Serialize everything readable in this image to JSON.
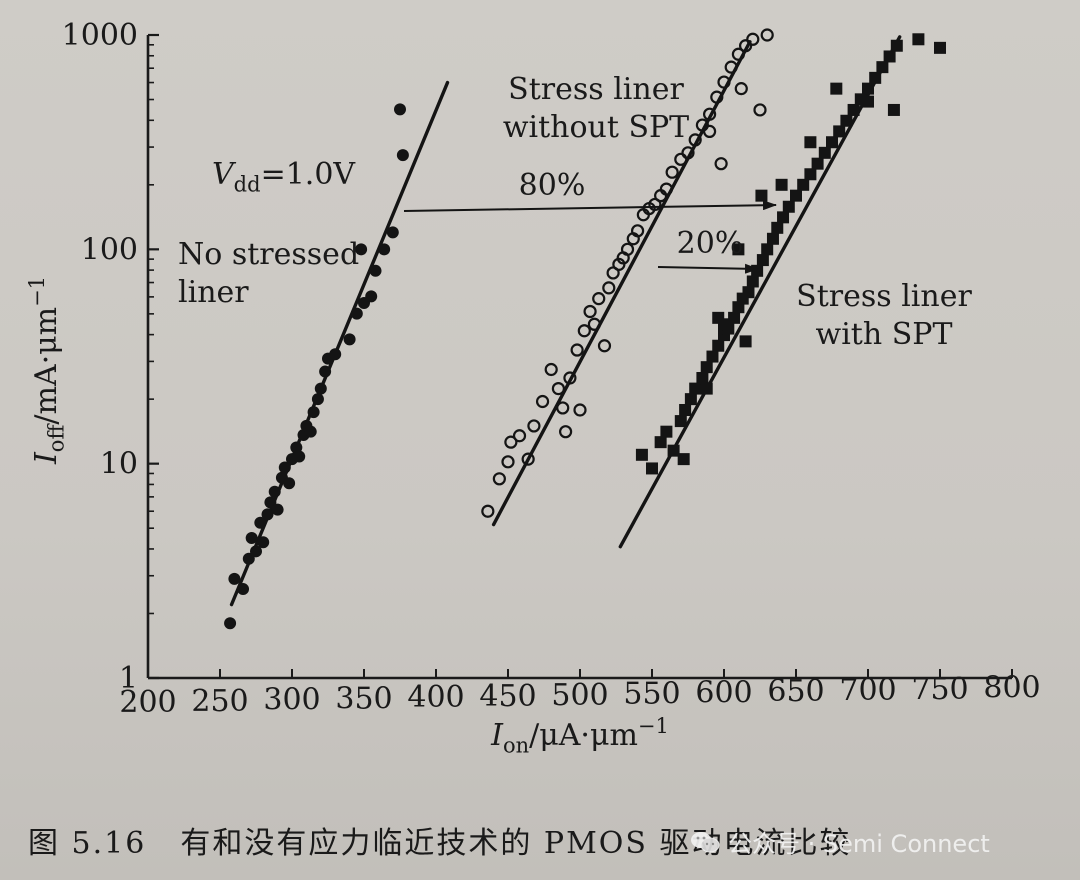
{
  "figure": {
    "caption_number": "图 5.16",
    "caption_text": "有和没有应力临近技术的 PMOS 驱动电流比较",
    "watermark": "公众号 · Semi Connect",
    "watermark_icon": "wechat-icon"
  },
  "chart_data": {
    "type": "scatter",
    "title": "",
    "xlabel": "I_on/μA·μm^-1",
    "ylabel": "I_off/mA·μm^-1",
    "xlim": [
      200,
      800
    ],
    "ylim": [
      1,
      1000
    ],
    "yscale": "log",
    "xticks": [
      "200",
      "250",
      "300",
      "350",
      "400",
      "450",
      "500",
      "550",
      "600",
      "650",
      "700",
      "750",
      "800"
    ],
    "yticks": [
      "1",
      "10",
      "100",
      "1000"
    ],
    "annotations": {
      "vdd": "V_dd=1.0V",
      "improvement_80": "80%",
      "improvement_20": "20%"
    },
    "series": [
      {
        "name": "No stressed liner",
        "label_lines": [
          "No stressed",
          "liner"
        ],
        "marker": "filled-circle",
        "fit": [
          [
            258,
            2.2
          ],
          [
            408,
            600
          ]
        ],
        "points": [
          [
            257,
            1.8
          ],
          [
            260,
            2.9
          ],
          [
            266,
            2.6
          ],
          [
            270,
            3.6
          ],
          [
            272,
            4.5
          ],
          [
            275,
            3.9
          ],
          [
            278,
            5.3
          ],
          [
            280,
            4.3
          ],
          [
            283,
            5.8
          ],
          [
            285,
            6.6
          ],
          [
            288,
            7.4
          ],
          [
            290,
            6.1
          ],
          [
            293,
            8.6
          ],
          [
            295,
            9.6
          ],
          [
            298,
            8.1
          ],
          [
            300,
            10.5
          ],
          [
            303,
            11.9
          ],
          [
            305,
            10.8
          ],
          [
            308,
            13.6
          ],
          [
            310,
            15.0
          ],
          [
            313,
            14.1
          ],
          [
            315,
            17.4
          ],
          [
            318,
            20.0
          ],
          [
            320,
            22.4
          ],
          [
            323,
            26.9
          ],
          [
            325,
            30.9
          ],
          [
            330,
            32.4
          ],
          [
            340,
            38.0
          ],
          [
            345,
            50.1
          ],
          [
            350,
            56.2
          ],
          [
            355,
            60.3
          ],
          [
            348,
            100
          ],
          [
            358,
            79.4
          ],
          [
            364,
            100
          ],
          [
            370,
            120
          ],
          [
            377,
            275
          ],
          [
            375,
            450
          ]
        ]
      },
      {
        "name": "Stress liner without SPT",
        "label_lines": [
          "Stress liner",
          "without SPT"
        ],
        "marker": "open-circle",
        "fit": [
          [
            440,
            5.2
          ],
          [
            618,
            930
          ]
        ],
        "points": [
          [
            436,
            6.0
          ],
          [
            444,
            8.5
          ],
          [
            450,
            10.2
          ],
          [
            452,
            12.6
          ],
          [
            458,
            13.5
          ],
          [
            464,
            10.5
          ],
          [
            468,
            15.0
          ],
          [
            474,
            19.5
          ],
          [
            480,
            27.5
          ],
          [
            485,
            22.4
          ],
          [
            488,
            18.2
          ],
          [
            490,
            14.1
          ],
          [
            493,
            25.1
          ],
          [
            498,
            33.9
          ],
          [
            500,
            17.8
          ],
          [
            503,
            41.7
          ],
          [
            507,
            51.3
          ],
          [
            510,
            44.7
          ],
          [
            513,
            58.9
          ],
          [
            517,
            35.5
          ],
          [
            520,
            66.1
          ],
          [
            523,
            77.6
          ],
          [
            527,
            85.1
          ],
          [
            530,
            91.2
          ],
          [
            533,
            100
          ],
          [
            537,
            112
          ],
          [
            540,
            122
          ],
          [
            544,
            145
          ],
          [
            548,
            155
          ],
          [
            552,
            162
          ],
          [
            556,
            178
          ],
          [
            560,
            191
          ],
          [
            564,
            229
          ],
          [
            570,
            263
          ],
          [
            575,
            282
          ],
          [
            580,
            324
          ],
          [
            585,
            380
          ],
          [
            590,
            427
          ],
          [
            595,
            513
          ],
          [
            600,
            603
          ],
          [
            605,
            708
          ],
          [
            610,
            813
          ],
          [
            615,
            891
          ],
          [
            620,
            955
          ],
          [
            598,
            251
          ],
          [
            590,
            355
          ],
          [
            625,
            447
          ],
          [
            630,
            1000
          ],
          [
            612,
            562
          ]
        ]
      },
      {
        "name": "Stress liner with SPT",
        "label_lines": [
          "Stress liner",
          "with SPT"
        ],
        "marker": "filled-square",
        "fit": [
          [
            528,
            4.1
          ],
          [
            722,
            980
          ]
        ],
        "points": [
          [
            543,
            11.0
          ],
          [
            550,
            9.5
          ],
          [
            556,
            12.6
          ],
          [
            560,
            14.1
          ],
          [
            565,
            11.5
          ],
          [
            570,
            15.8
          ],
          [
            573,
            17.8
          ],
          [
            577,
            20.0
          ],
          [
            580,
            22.4
          ],
          [
            585,
            25.1
          ],
          [
            588,
            28.2
          ],
          [
            592,
            31.6
          ],
          [
            596,
            35.5
          ],
          [
            600,
            39.8
          ],
          [
            603,
            42.7
          ],
          [
            607,
            47.9
          ],
          [
            610,
            53.7
          ],
          [
            613,
            58.9
          ],
          [
            617,
            63.1
          ],
          [
            620,
            70.8
          ],
          [
            623,
            79.4
          ],
          [
            627,
            89.1
          ],
          [
            630,
            100
          ],
          [
            634,
            112
          ],
          [
            637,
            126
          ],
          [
            641,
            141
          ],
          [
            645,
            158
          ],
          [
            650,
            178
          ],
          [
            655,
            200
          ],
          [
            660,
            224
          ],
          [
            665,
            251
          ],
          [
            670,
            282
          ],
          [
            675,
            316
          ],
          [
            680,
            355
          ],
          [
            685,
            398
          ],
          [
            690,
            447
          ],
          [
            695,
            501
          ],
          [
            700,
            562
          ],
          [
            705,
            631
          ],
          [
            710,
            708
          ],
          [
            715,
            794
          ],
          [
            720,
            891
          ],
          [
            735,
            955
          ],
          [
            750,
            871
          ],
          [
            610,
            100
          ],
          [
            626,
            178
          ],
          [
            640,
            200
          ],
          [
            660,
            316
          ],
          [
            678,
            562
          ],
          [
            700,
            489
          ],
          [
            718,
            447
          ],
          [
            600,
            44.7
          ],
          [
            588,
            22.4
          ],
          [
            572,
            10.5
          ],
          [
            596,
            47.9
          ],
          [
            615,
            37.2
          ]
        ]
      }
    ]
  }
}
